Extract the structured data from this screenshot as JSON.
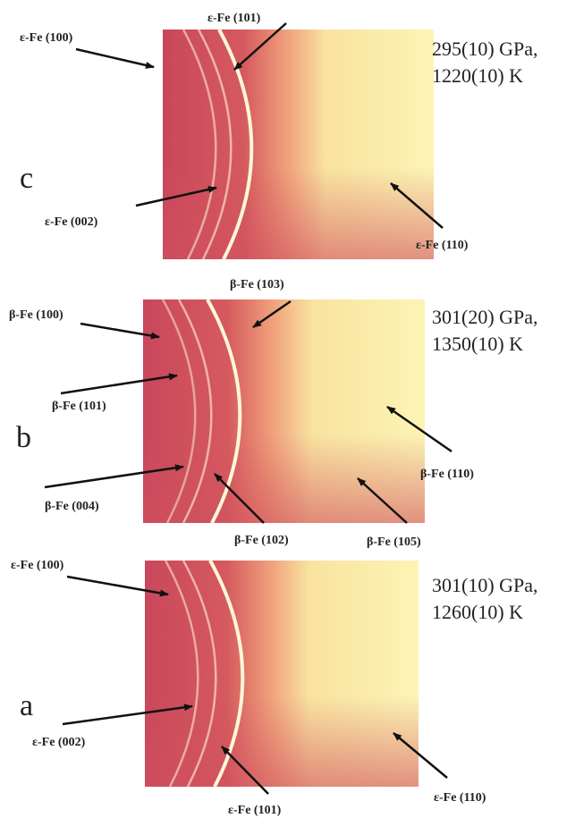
{
  "panels": [
    {
      "label": "c",
      "conditions": [
        "295(10) GPa,",
        "1220(10) K"
      ],
      "annotations": [
        "ε-Fe (100)",
        "ε-Fe (101)",
        "ε-Fe (002)",
        "ε-Fe (110)"
      ]
    },
    {
      "label": "b",
      "conditions": [
        "301(20) GPa,",
        "1350(10) K"
      ],
      "annotations": [
        "β-Fe (103)",
        "β-Fe (100)",
        "β-Fe (101)",
        "β-Fe (004)",
        "β-Fe (102)",
        "β-Fe (110)",
        "β-Fe (105)"
      ]
    },
    {
      "label": "a",
      "conditions": [
        "301(10) GPa,",
        "1260(10) K"
      ],
      "annotations": [
        "ε-Fe (100)",
        "ε-Fe (002)",
        "ε-Fe (101)",
        "ε-Fe (110)"
      ]
    }
  ]
}
